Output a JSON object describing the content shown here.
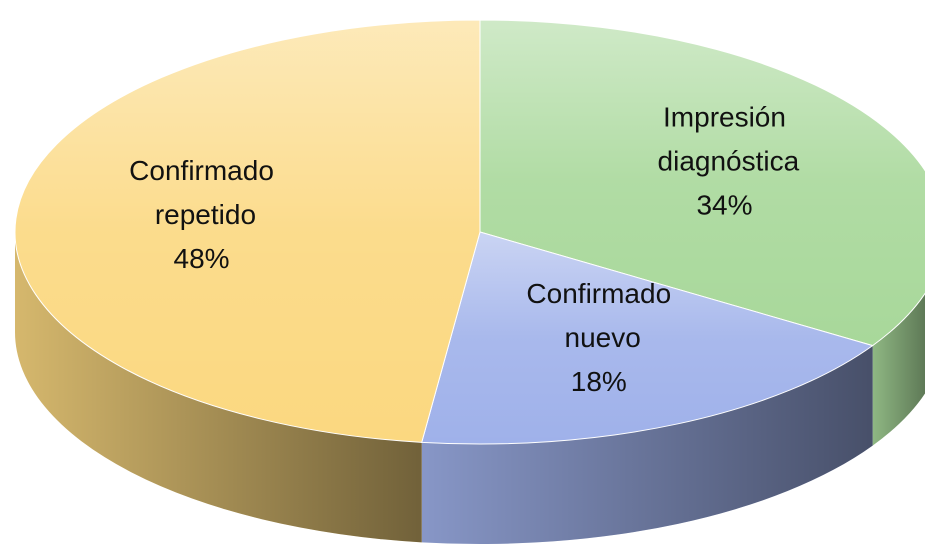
{
  "chart_data": {
    "type": "pie3d",
    "categories": [
      "Impresión diagnóstica",
      "Confirmado nuevo",
      "Confirmado repetido"
    ],
    "values": [
      34,
      18,
      48
    ],
    "value_labels": [
      "34%",
      "18%",
      "48%"
    ],
    "colors": [
      "#a8d89a",
      "#9fb1ea",
      "#fbd880"
    ]
  }
}
